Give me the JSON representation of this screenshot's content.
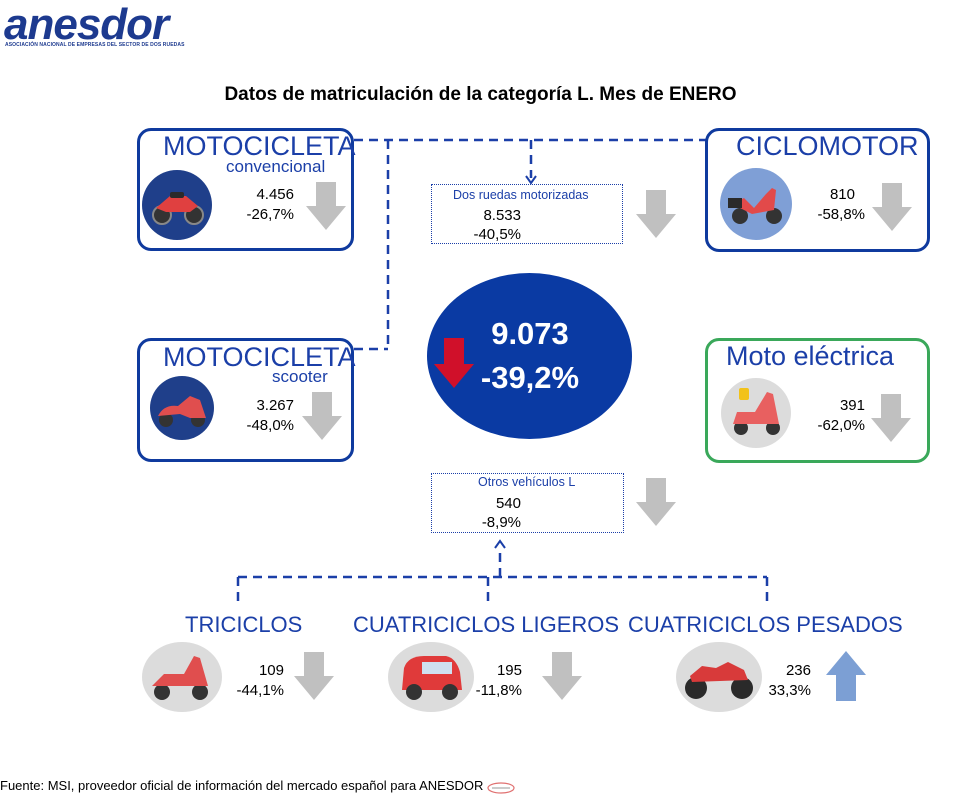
{
  "header": {
    "logo": "anesdor",
    "logo_subtitle": "ASOCIACIÓN NACIONAL DE EMPRESAS DEL SECTOR DE DOS RUEDAS",
    "title": "Datos de matriculación de la categoría L. Mes de ENERO"
  },
  "total": {
    "value": "9.073",
    "change": "-39,2%"
  },
  "moto_convencional": {
    "title": "MOTOCICLETA",
    "subtitle": "convencional",
    "value": "4.456",
    "change": "-26,7%",
    "trend": "down"
  },
  "moto_scooter": {
    "title": "MOTOCICLETA",
    "subtitle": "scooter",
    "value": "3.267",
    "change": "-48,0%",
    "trend": "down"
  },
  "ciclomotor": {
    "title": "CICLOMOTOR",
    "value": "810",
    "change": "-58,8%",
    "trend": "down"
  },
  "moto_electrica": {
    "title": "Moto eléctrica",
    "value": "391",
    "change": "-62,0%",
    "trend": "down"
  },
  "dos_ruedas": {
    "label": "Dos ruedas motorizadas",
    "value": "8.533",
    "change": "-40,5%",
    "trend": "down"
  },
  "otros": {
    "label": "Otros vehículos L",
    "value": "540",
    "change": "-8,9%",
    "trend": "down"
  },
  "triciclos": {
    "title": "TRICICLOS",
    "value": "109",
    "change": "-44,1%",
    "trend": "down"
  },
  "cuatriciclos_ligeros": {
    "title": "CUATRICICLOS LIGEROS",
    "value": "195",
    "change": "-11,8%",
    "trend": "down"
  },
  "cuatriciclos_pesados": {
    "title": "CUATRICICLOS PESADOS",
    "value": "236",
    "change": "33,3%",
    "trend": "up"
  },
  "footer": {
    "source": "Fuente: MSI, proveedor oficial de información del mercado español para ANESDOR"
  },
  "colors": {
    "brand": "#0f3a9e",
    "circle": "#0a3aa3",
    "arrow_grey": "#c0c0c0",
    "arrow_red": "#d0102a",
    "arrow_blue": "#7c9fd4",
    "green": "#3aa85a"
  }
}
